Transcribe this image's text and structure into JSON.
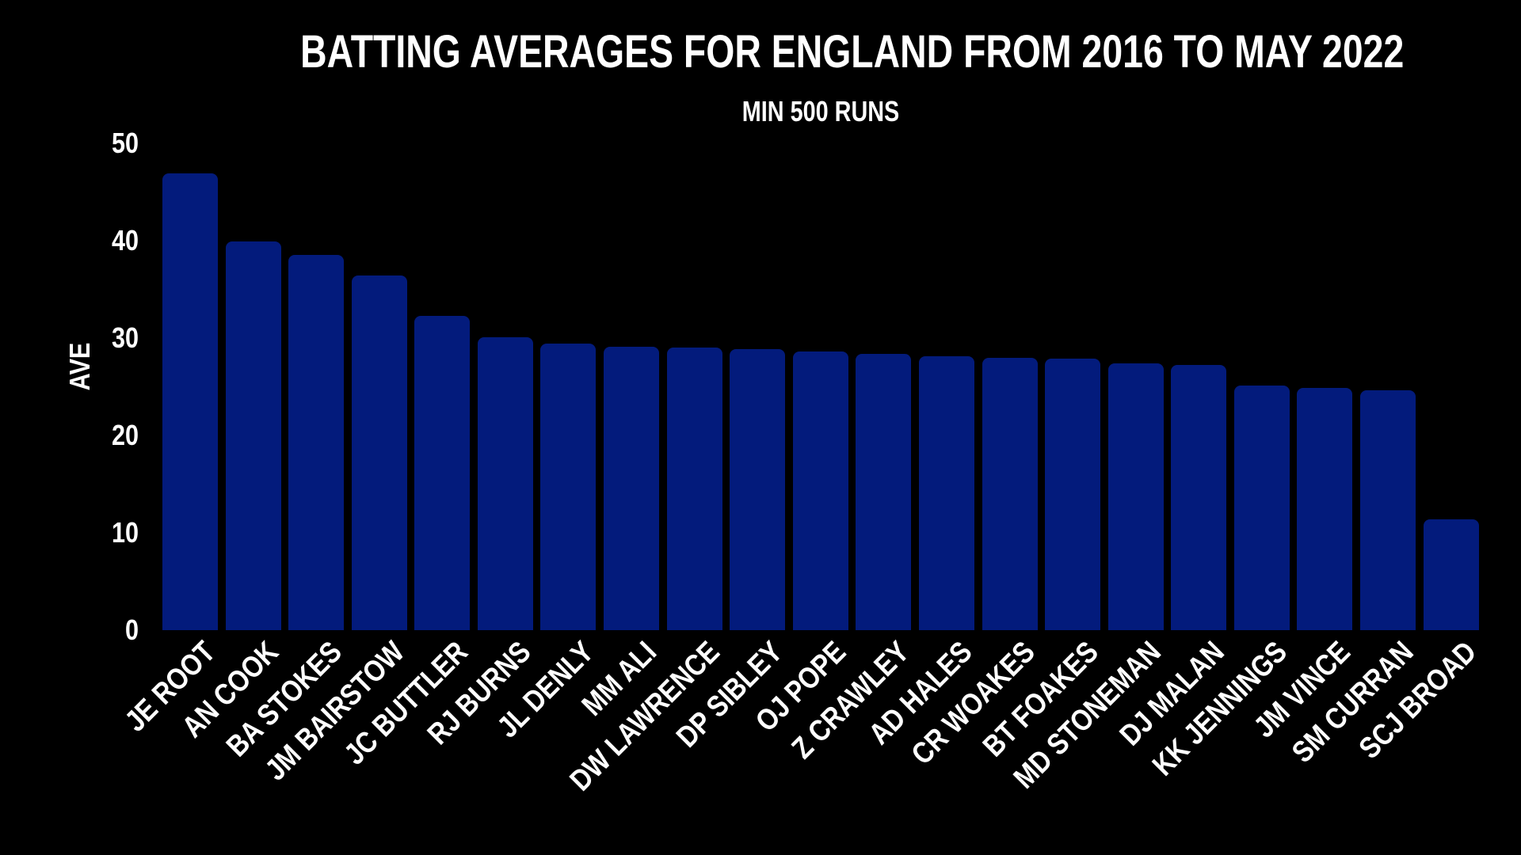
{
  "chart_data": {
    "type": "bar",
    "title": "BATTING AVERAGES FOR ENGLAND FROM 2016 TO MAY 2022",
    "subtitle": "MIN 500 RUNS",
    "xlabel": "",
    "ylabel": "AVE",
    "ylim": [
      0,
      50
    ],
    "yticks": [
      0,
      10,
      20,
      30,
      40,
      50
    ],
    "grid": false,
    "legend": false,
    "colors": {
      "background": "#000000",
      "bar": "#031B7C",
      "text": "#FFFFFF"
    },
    "categories": [
      "JE ROOT",
      "AN COOK",
      "BA STOKES",
      "JM BAIRSTOW",
      "JC BUTTLER",
      "RJ BURNS",
      "JL DENLY",
      "MM ALI",
      "DW LAWRENCE",
      "DP SIBLEY",
      "OJ POPE",
      "Z CRAWLEY",
      "AD HALES",
      "CR WOAKES",
      "BT FOAKES",
      "MD STONEMAN",
      "DJ MALAN",
      "KK JENNINGS",
      "JM VINCE",
      "SM CURRAN",
      "SCJ BROAD"
    ],
    "values": [
      46.9,
      39.9,
      38.5,
      36.4,
      32.3,
      30.1,
      29.4,
      29.1,
      29.0,
      28.9,
      28.6,
      28.4,
      28.1,
      28.0,
      27.9,
      27.4,
      27.2,
      25.1,
      24.9,
      24.6,
      11.4
    ]
  }
}
